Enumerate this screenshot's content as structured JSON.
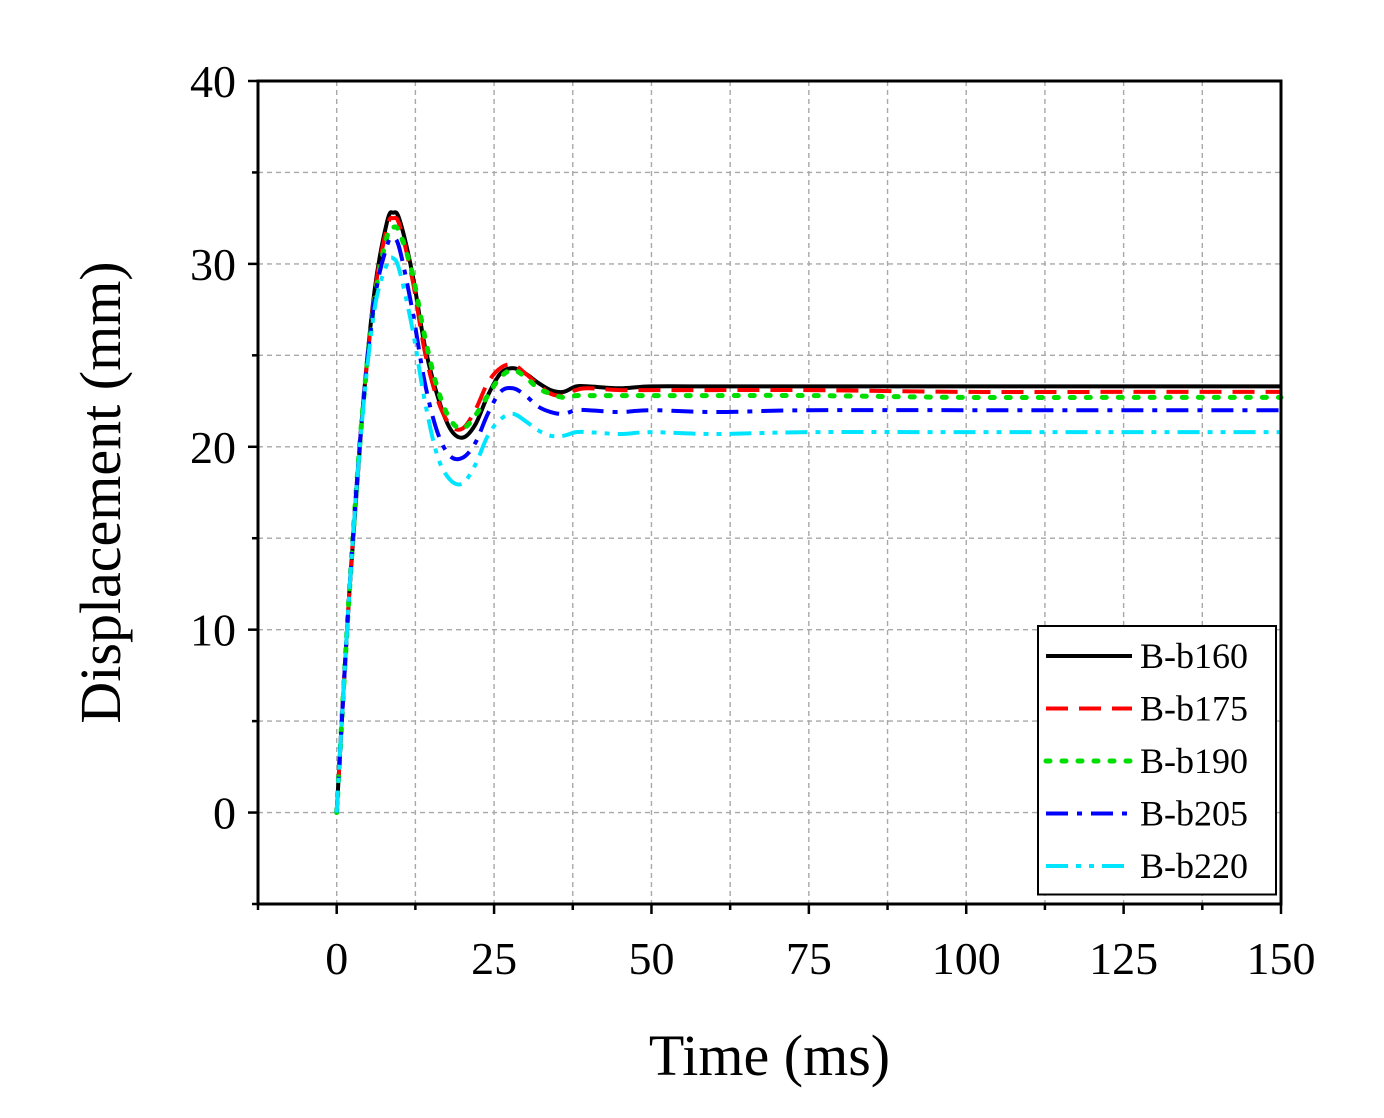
{
  "chart_data": {
    "type": "line",
    "title": "",
    "xlabel": "Time (ms)",
    "ylabel": "Displacement (mm)",
    "xlim": [
      -12.5,
      150
    ],
    "ylim": [
      -5,
      40
    ],
    "xticks": [
      0,
      25,
      50,
      75,
      100,
      125,
      150
    ],
    "yticks": [
      0,
      10,
      20,
      30,
      40
    ],
    "x_tick_labels": [
      "0",
      "25",
      "50",
      "75",
      "100",
      "125",
      "150"
    ],
    "y_tick_labels": [
      "0",
      "10",
      "20",
      "30",
      "40"
    ],
    "grid": true,
    "legend_position": "bottom-right",
    "series": [
      {
        "name": "B-b160",
        "color": "#000000",
        "dash": "solid",
        "x": [
          0,
          2,
          4,
          6,
          8,
          9,
          10,
          12,
          14,
          16,
          18,
          20,
          22,
          24,
          26,
          28,
          30,
          32,
          34,
          36,
          38,
          40,
          45,
          50,
          60,
          75,
          100,
          125,
          150
        ],
        "y": [
          0,
          12,
          21.5,
          28.5,
          32.3,
          32.8,
          32.4,
          29.5,
          25.5,
          22.8,
          21.0,
          20.5,
          21.2,
          22.8,
          24.0,
          24.3,
          24.0,
          23.5,
          23.1,
          23.0,
          23.3,
          23.3,
          23.2,
          23.3,
          23.3,
          23.3,
          23.3,
          23.3,
          23.3
        ]
      },
      {
        "name": "B-b175",
        "color": "#ff0000",
        "dash": "dashed",
        "x": [
          0,
          2,
          4,
          6,
          8,
          9,
          10,
          12,
          14,
          16,
          18,
          20,
          22,
          24,
          26,
          28,
          30,
          32,
          34,
          36,
          38,
          40,
          45,
          50,
          60,
          75,
          100,
          125,
          150
        ],
        "y": [
          0,
          12,
          21.5,
          28.3,
          32.0,
          32.5,
          32.1,
          29.2,
          25.2,
          22.6,
          21.2,
          21.0,
          22.0,
          23.5,
          24.3,
          24.5,
          24.0,
          23.4,
          22.9,
          22.8,
          23.1,
          23.2,
          23.1,
          23.1,
          23.1,
          23.1,
          23.0,
          23.0,
          23.0
        ]
      },
      {
        "name": "B-b190",
        "color": "#00dd00",
        "dash": "dotted",
        "x": [
          0,
          2,
          4,
          6,
          8,
          9,
          10,
          12,
          14,
          16,
          18,
          20,
          22,
          24,
          26,
          28,
          30,
          32,
          34,
          36,
          38,
          40,
          45,
          50,
          60,
          75,
          100,
          125,
          150
        ],
        "y": [
          0,
          12,
          21.5,
          28.0,
          31.5,
          32.0,
          31.7,
          29.5,
          26.0,
          23.2,
          21.5,
          21.0,
          21.7,
          22.8,
          23.8,
          24.2,
          23.8,
          23.2,
          22.9,
          22.7,
          22.8,
          22.8,
          22.8,
          22.8,
          22.8,
          22.8,
          22.7,
          22.7,
          22.7
        ]
      },
      {
        "name": "B-b205",
        "color": "#0000ff",
        "dash": "dashdot",
        "x": [
          0,
          2,
          4,
          6,
          8,
          9,
          10,
          12,
          14,
          16,
          18,
          20,
          22,
          24,
          26,
          28,
          30,
          32,
          34,
          36,
          38,
          40,
          45,
          50,
          60,
          75,
          100,
          125,
          150
        ],
        "y": [
          0,
          12,
          21.5,
          28.0,
          31.0,
          31.4,
          30.8,
          27.5,
          23.5,
          20.8,
          19.5,
          19.4,
          20.2,
          21.8,
          23.0,
          23.2,
          22.8,
          22.2,
          21.9,
          21.8,
          22.0,
          22.0,
          21.9,
          22.0,
          21.9,
          22.0,
          22.0,
          22.0,
          22.0
        ]
      },
      {
        "name": "B-b220",
        "color": "#00e5ff",
        "dash": "dashdotdot",
        "x": [
          0,
          2,
          4,
          6,
          8,
          9,
          10,
          12,
          14,
          16,
          18,
          20,
          22,
          24,
          26,
          28,
          30,
          32,
          34,
          36,
          38,
          40,
          45,
          50,
          60,
          75,
          100,
          125,
          150
        ],
        "y": [
          0,
          12,
          21.3,
          27.5,
          30.0,
          30.3,
          29.6,
          26.5,
          22.5,
          19.5,
          18.2,
          18.0,
          19.0,
          20.6,
          21.5,
          21.8,
          21.4,
          20.9,
          20.6,
          20.6,
          20.8,
          20.8,
          20.7,
          20.8,
          20.7,
          20.8,
          20.8,
          20.8,
          20.8
        ]
      }
    ]
  }
}
